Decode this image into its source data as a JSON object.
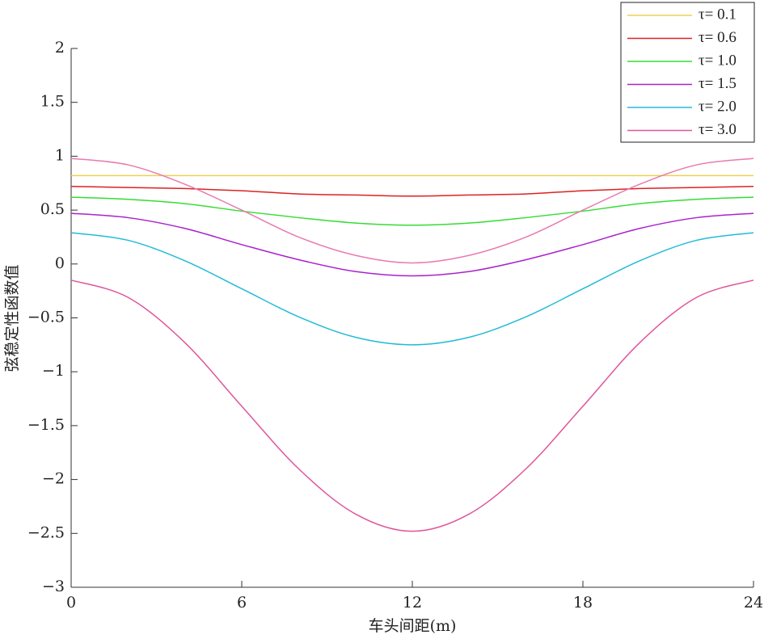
{
  "chart_data": {
    "type": "line",
    "x_label": "车头间距(m)",
    "y_label": "弦稳定性函数值",
    "x": [
      0,
      2,
      4,
      6,
      8,
      10,
      12,
      14,
      16,
      18,
      20,
      22,
      24
    ],
    "series": [
      {
        "name": "τ= 0.1",
        "color": "#f0d050",
        "values": [
          0.82,
          0.82,
          0.82,
          0.82,
          0.82,
          0.82,
          0.82,
          0.82,
          0.82,
          0.82,
          0.82,
          0.82,
          0.82
        ]
      },
      {
        "name": "τ= 0.6",
        "color": "#dd2222",
        "values": [
          0.72,
          0.71,
          0.7,
          0.68,
          0.65,
          0.64,
          0.63,
          0.64,
          0.65,
          0.68,
          0.7,
          0.71,
          0.72
        ]
      },
      {
        "name": "τ= 1.0",
        "color": "#33dd33",
        "values": [
          0.62,
          0.6,
          0.56,
          0.49,
          0.43,
          0.38,
          0.36,
          0.38,
          0.43,
          0.49,
          0.56,
          0.6,
          0.62
        ]
      },
      {
        "name": "τ= 1.5",
        "color": "#aa22cc",
        "values": [
          0.47,
          0.43,
          0.33,
          0.18,
          0.04,
          -0.07,
          -0.11,
          -0.07,
          0.04,
          0.18,
          0.33,
          0.43,
          0.47
        ]
      },
      {
        "name": "τ= 2.0",
        "color": "#22bbd8",
        "values": [
          0.29,
          0.22,
          0.03,
          -0.23,
          -0.49,
          -0.68,
          -0.75,
          -0.68,
          -0.49,
          -0.23,
          0.03,
          0.22,
          0.29
        ]
      },
      {
        "name": "τ= 3.0",
        "color": "#e0559a",
        "values": [
          -0.15,
          -0.31,
          -0.73,
          -1.32,
          -1.9,
          -2.32,
          -2.48,
          -2.32,
          -1.9,
          -1.32,
          -0.73,
          -0.31,
          -0.15
        ]
      },
      {
        "color": "#e87ab0",
        "values": [
          0.98,
          0.92,
          0.74,
          0.5,
          0.25,
          0.08,
          0.01,
          0.08,
          0.25,
          0.5,
          0.74,
          0.92,
          0.98
        ]
      }
    ],
    "xlim": [
      0,
      24
    ],
    "xticks": [
      0,
      6,
      12,
      18,
      24
    ],
    "ylim": [
      -3,
      2
    ],
    "yticks": [
      {
        "value": -3,
        "label": "−3"
      },
      {
        "value": -2.5,
        "label": "−2.5"
      },
      {
        "value": -2,
        "label": "−2"
      },
      {
        "value": -1.5,
        "label": "−1.5"
      },
      {
        "value": -1,
        "label": "−1"
      },
      {
        "value": -0.5,
        "label": "−0.5"
      },
      0,
      0.5,
      1,
      1.5,
      2
    ],
    "legend": "upper right"
  }
}
